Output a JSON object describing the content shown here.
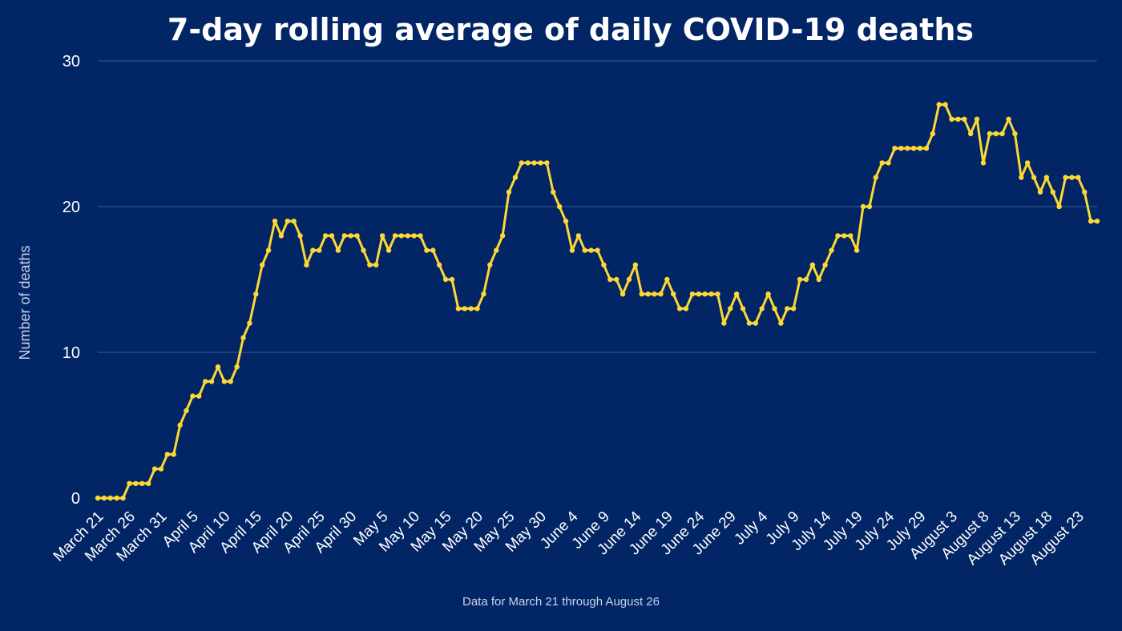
{
  "chart_data": {
    "type": "line",
    "title": "7-day rolling average of daily COVID-19 deaths",
    "ylabel": "Number of deaths",
    "xlabel": "",
    "footnote": "Data for March 21 through August 26",
    "ylim": [
      0,
      30
    ],
    "yticks": [
      0,
      10,
      20,
      30
    ],
    "grid": true,
    "line_color": "#fdd835",
    "background_color": "#022566",
    "xtick_labels": [
      "March 21",
      "March 26",
      "March 31",
      "April 5",
      "April 10",
      "April 15",
      "April 20",
      "April 25",
      "April 30",
      "May 5",
      "May 10",
      "May 15",
      "May 20",
      "May 25",
      "May 30",
      "June 4",
      "June 9",
      "June 14",
      "June 19",
      "June 24",
      "June 29",
      "July 4",
      "July 9",
      "July 14",
      "July 19",
      "July 24",
      "July 29",
      "August 3",
      "August 8",
      "August 13",
      "August 18",
      "August 23"
    ],
    "x_start_date": "2020-03-21",
    "x_end_date": "2020-08-26",
    "series": [
      {
        "values": [
          0,
          0,
          0,
          0,
          0,
          1,
          1,
          1,
          1,
          2,
          2,
          3,
          3,
          5,
          6,
          7,
          7,
          8,
          8,
          9,
          8,
          8,
          9,
          11,
          12,
          14,
          16,
          17,
          19,
          18,
          19,
          19,
          18,
          16,
          17,
          17,
          18,
          18,
          17,
          18,
          18,
          18,
          17,
          16,
          16,
          18,
          17,
          18,
          18,
          18,
          18,
          18,
          17,
          17,
          16,
          15,
          15,
          13,
          13,
          13,
          13,
          14,
          16,
          17,
          18,
          21,
          22,
          23,
          23,
          23,
          23,
          23,
          21,
          20,
          19,
          17,
          18,
          17,
          17,
          17,
          16,
          15,
          15,
          14,
          15,
          16,
          14,
          14,
          14,
          14,
          15,
          14,
          13,
          13,
          14,
          14,
          14,
          14,
          14,
          12,
          13,
          14,
          13,
          12,
          12,
          13,
          14,
          13,
          12,
          13,
          13,
          15,
          15,
          16,
          15,
          16,
          17,
          18,
          18,
          18,
          17,
          20,
          20,
          22,
          23,
          23,
          24,
          24,
          24,
          24,
          24,
          24,
          25,
          27,
          27,
          26,
          26,
          26,
          25,
          26,
          23,
          25,
          25,
          25,
          26,
          25,
          22,
          23,
          22,
          21,
          22,
          21,
          20,
          22,
          22,
          22,
          21,
          19,
          19
        ]
      }
    ]
  }
}
